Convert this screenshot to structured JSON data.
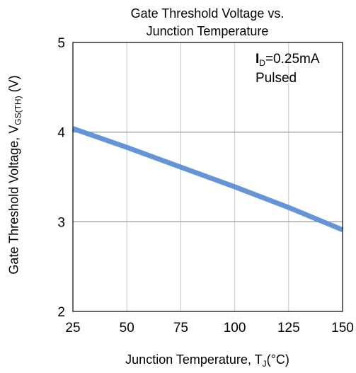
{
  "chart_data": {
    "type": "line",
    "title": [
      "Gate Threshold  Voltage vs.",
      "Junction Temperature"
    ],
    "xlabel": {
      "main": "Junction Temperature, T",
      "sub": "J",
      "unit": "(°C)"
    },
    "ylabel": {
      "main": "Gate Threshold  Voltage, V",
      "sub": "GS(TH)",
      "unit": " (V)"
    },
    "xlim": [
      25,
      150
    ],
    "ylim": [
      2,
      5
    ],
    "x_ticks": [
      25,
      50,
      75,
      100,
      125,
      150
    ],
    "y_ticks": [
      2,
      3,
      4,
      5
    ],
    "grid": {
      "vertical": true,
      "horizontal": true
    },
    "annotation": {
      "symbol": "I",
      "sub": "D",
      "condition": "=0.25mA",
      "mode": "Pulsed"
    },
    "series": [
      {
        "color": "#5b8fd6",
        "x": [
          25,
          50,
          75,
          100,
          125,
          150
        ],
        "y": [
          4.04,
          3.83,
          3.61,
          3.39,
          3.16,
          2.91
        ]
      }
    ]
  }
}
